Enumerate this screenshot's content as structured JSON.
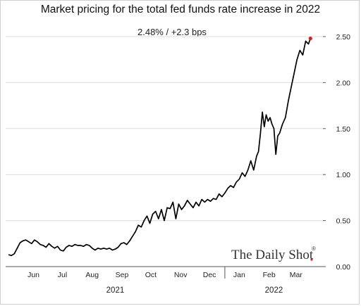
{
  "chart_data": {
    "type": "line",
    "title": "Market pricing for the total fed funds rate increase in 2022",
    "subtitle": "2.48%  /  +2.3 bps",
    "ylim": [
      0,
      2.5
    ],
    "yticks": [
      "0.00",
      "0.50",
      "1.00",
      "1.50",
      "2.00",
      "2.50"
    ],
    "x_month_labels": [
      "Jun",
      "Jul",
      "Aug",
      "Sep",
      "Oct",
      "Nov",
      "Dec",
      "Jan",
      "Feb",
      "Mar"
    ],
    "year_labels": [
      "2021",
      "2022"
    ],
    "watermark": "The Daily Shot",
    "watermark_mark": "®",
    "line_color": "#000000",
    "last_point_color": "#d62020",
    "series": [
      {
        "x": [
          "2021-05-20",
          "2021-05-23",
          "2021-05-26",
          "2021-05-29",
          "2021-06-01",
          "2021-06-04",
          "2021-06-07",
          "2021-06-10",
          "2021-06-13",
          "2021-06-16",
          "2021-06-19",
          "2021-06-22",
          "2021-06-25",
          "2021-06-28",
          "2021-07-01",
          "2021-07-04",
          "2021-07-07",
          "2021-07-10",
          "2021-07-13",
          "2021-07-16",
          "2021-07-19",
          "2021-07-22",
          "2021-07-25",
          "2021-07-28",
          "2021-07-31",
          "2021-08-03",
          "2021-08-06",
          "2021-08-09",
          "2021-08-12",
          "2021-08-15",
          "2021-08-18",
          "2021-08-21",
          "2021-08-24",
          "2021-08-27",
          "2021-08-30",
          "2021-09-02",
          "2021-09-05",
          "2021-09-08",
          "2021-09-11",
          "2021-09-14",
          "2021-09-17",
          "2021-09-20",
          "2021-09-23",
          "2021-09-26",
          "2021-09-29",
          "2021-10-02",
          "2021-10-05",
          "2021-10-08",
          "2021-10-11",
          "2021-10-14",
          "2021-10-17",
          "2021-10-20",
          "2021-10-23",
          "2021-10-26",
          "2021-10-29",
          "2021-11-01",
          "2021-11-04",
          "2021-11-07",
          "2021-11-10",
          "2021-11-13",
          "2021-11-16",
          "2021-11-19",
          "2021-11-22",
          "2021-11-25",
          "2021-11-28",
          "2021-12-01",
          "2021-12-04",
          "2021-12-07",
          "2021-12-10",
          "2021-12-13",
          "2021-12-16",
          "2021-12-19",
          "2021-12-22",
          "2021-12-25",
          "2021-12-28",
          "2021-12-31",
          "2022-01-03",
          "2022-01-06",
          "2022-01-09",
          "2022-01-12",
          "2022-01-15",
          "2022-01-18",
          "2022-01-21",
          "2022-01-24",
          "2022-01-27",
          "2022-01-30",
          "2022-02-02",
          "2022-02-04",
          "2022-02-06",
          "2022-02-08",
          "2022-02-10",
          "2022-02-12",
          "2022-02-14",
          "2022-02-16",
          "2022-02-18",
          "2022-02-20",
          "2022-02-22",
          "2022-02-24",
          "2022-02-26",
          "2022-03-01",
          "2022-03-04",
          "2022-03-07",
          "2022-03-10",
          "2022-03-13",
          "2022-03-16",
          "2022-03-19",
          "2022-03-22",
          "2022-03-25",
          "2022-03-28",
          "2022-03-30"
        ],
        "y": [
          0.13,
          0.12,
          0.14,
          0.2,
          0.26,
          0.28,
          0.29,
          0.27,
          0.25,
          0.29,
          0.27,
          0.24,
          0.23,
          0.21,
          0.25,
          0.22,
          0.2,
          0.22,
          0.18,
          0.17,
          0.21,
          0.23,
          0.22,
          0.24,
          0.23,
          0.23,
          0.22,
          0.24,
          0.23,
          0.2,
          0.18,
          0.2,
          0.19,
          0.2,
          0.19,
          0.2,
          0.18,
          0.19,
          0.21,
          0.25,
          0.26,
          0.24,
          0.28,
          0.33,
          0.38,
          0.45,
          0.43,
          0.5,
          0.55,
          0.47,
          0.57,
          0.6,
          0.52,
          0.62,
          0.5,
          0.64,
          0.63,
          0.7,
          0.52,
          0.68,
          0.62,
          0.66,
          0.72,
          0.68,
          0.64,
          0.7,
          0.66,
          0.73,
          0.7,
          0.73,
          0.71,
          0.74,
          0.73,
          0.79,
          0.76,
          0.8,
          0.85,
          0.88,
          0.86,
          0.92,
          0.95,
          1.02,
          0.98,
          1.05,
          1.15,
          1.05,
          1.2,
          1.25,
          1.45,
          1.68,
          1.52,
          1.65,
          1.58,
          1.62,
          1.55,
          1.5,
          1.22,
          1.42,
          1.45,
          1.55,
          1.62,
          1.8,
          1.95,
          2.1,
          2.25,
          2.35,
          2.3,
          2.45,
          2.42,
          2.48
        ]
      }
    ]
  }
}
